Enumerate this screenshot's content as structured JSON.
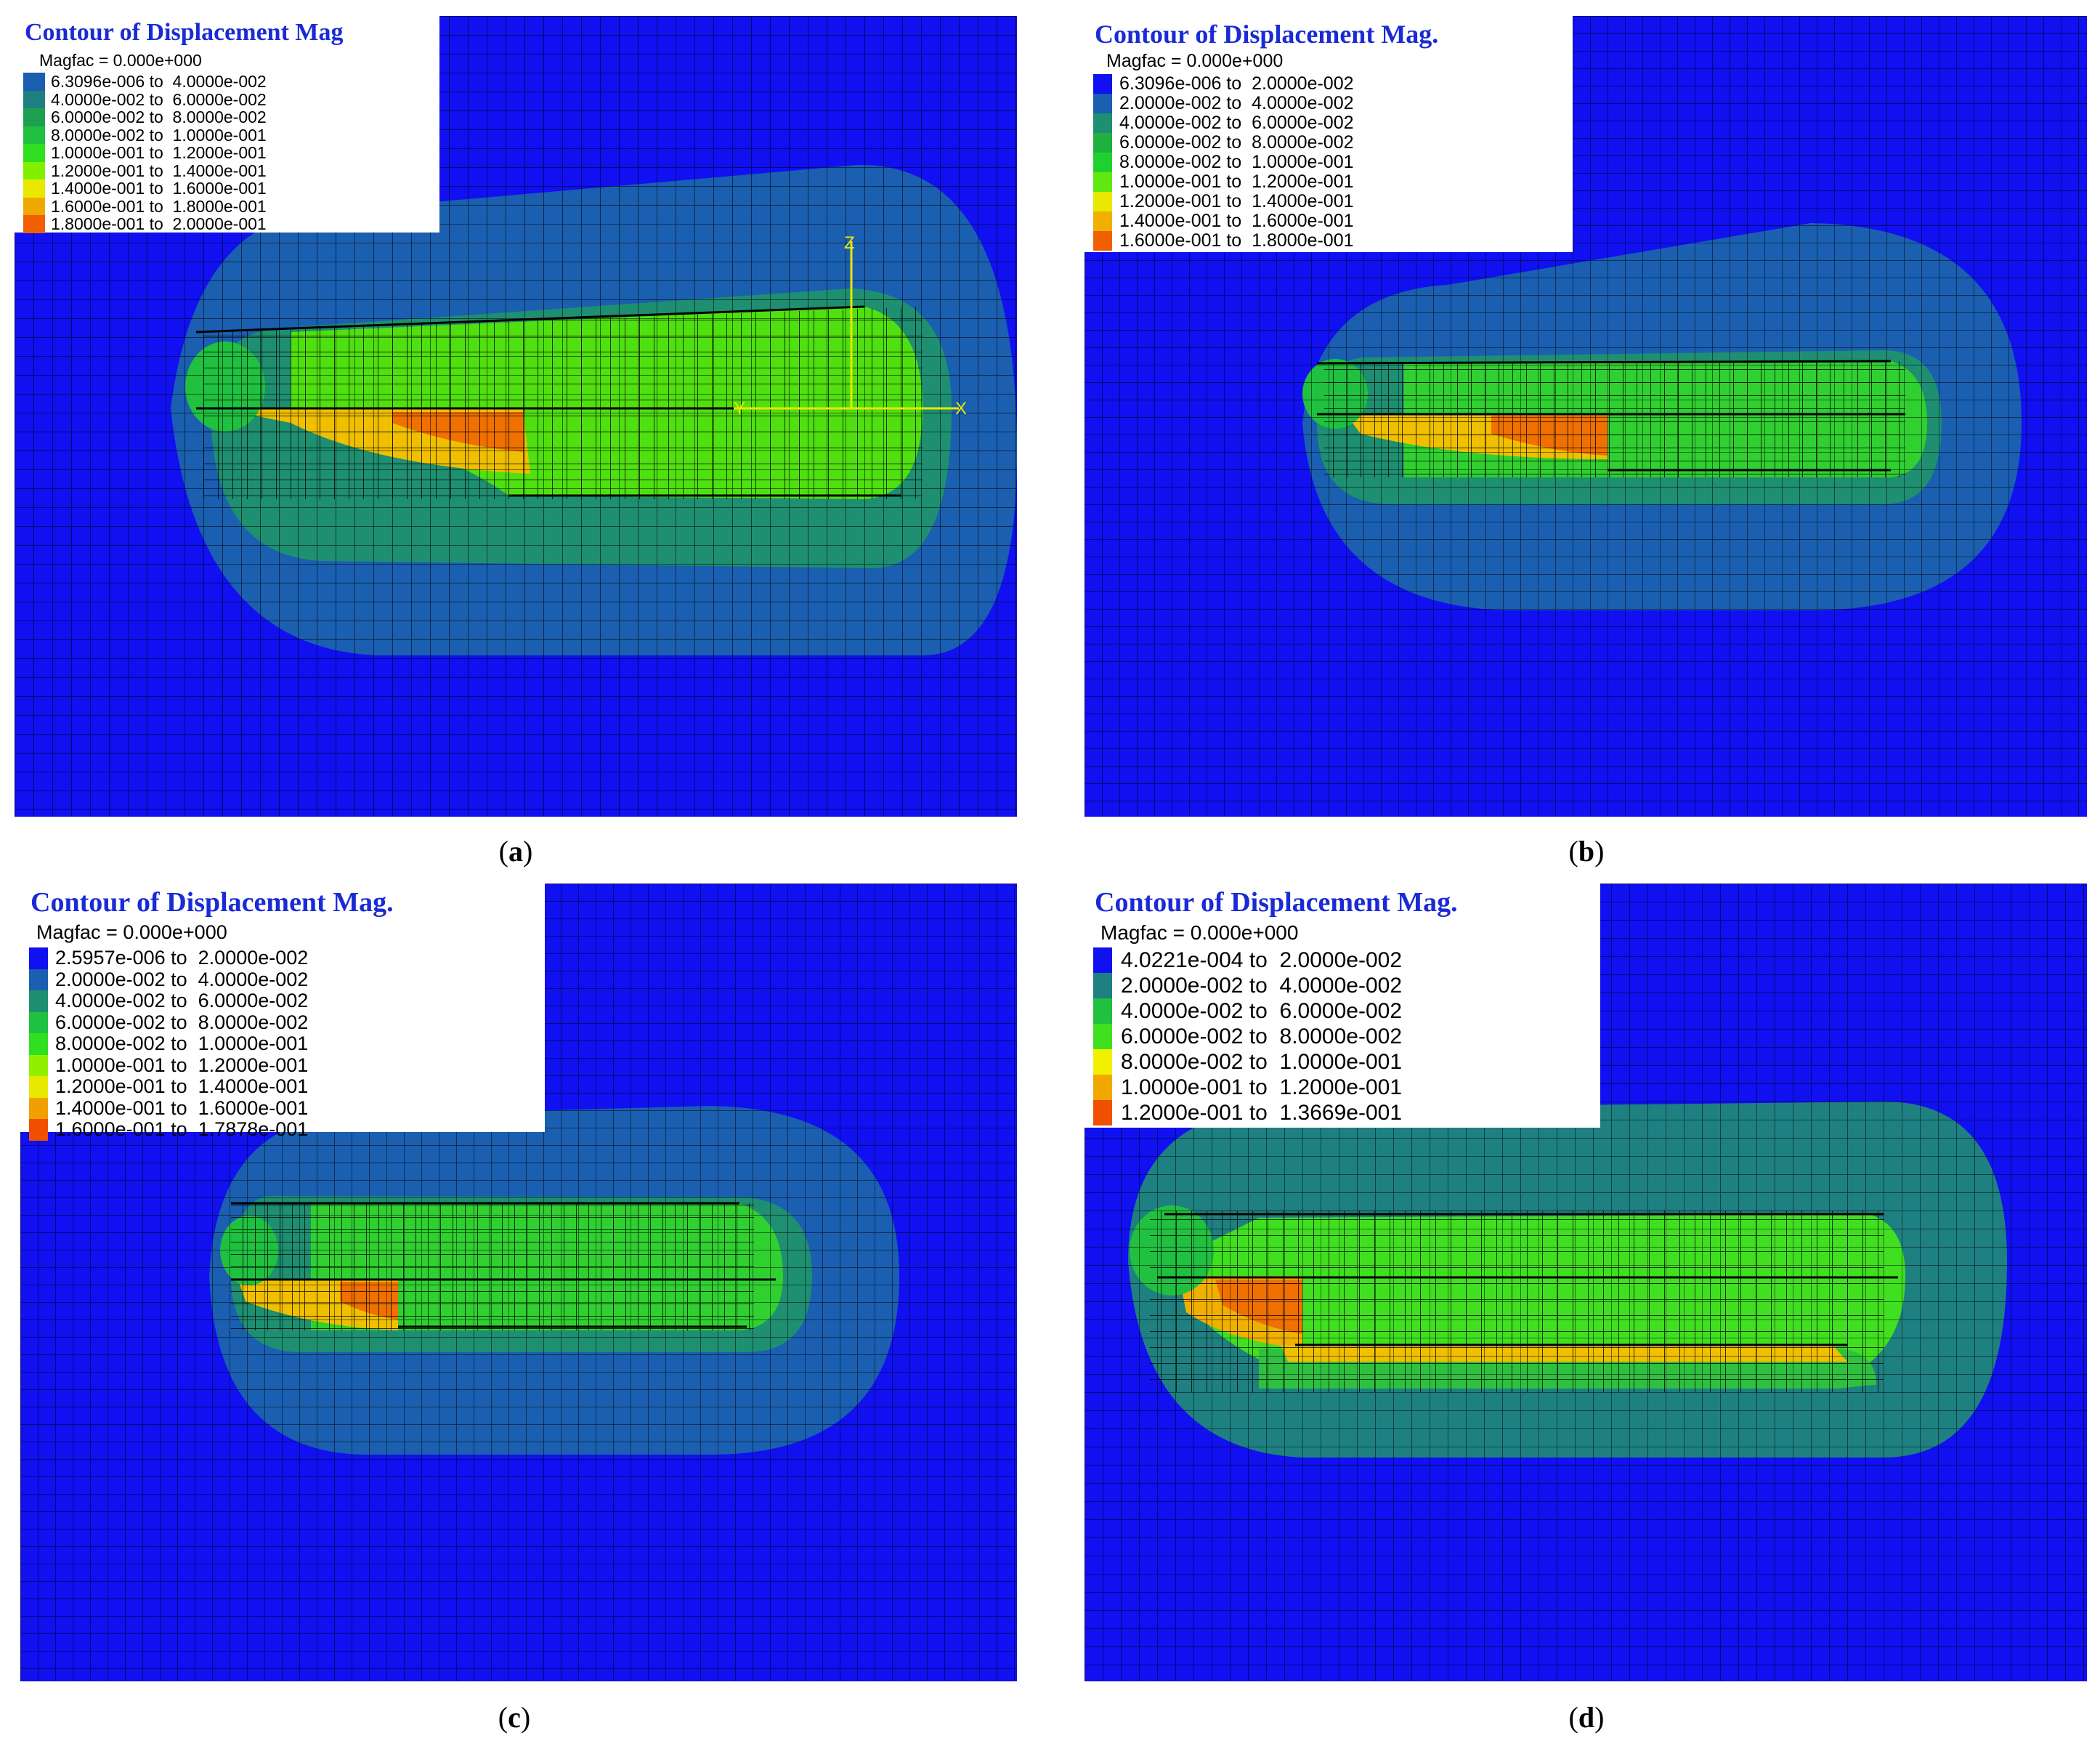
{
  "figure": {
    "background_color": "#1010f0",
    "panels": [
      {
        "id": "a",
        "caption_letter": "a",
        "title": "Contour of Displacement Mag",
        "magfac_label": "Magfac =",
        "magfac_value": "0.000e+000",
        "axis_labels": [
          "Z",
          "Y",
          "X"
        ],
        "legend": [
          {
            "range": "6.3096e-006 to  4.0000e-002",
            "color": "#1a5fb0"
          },
          {
            "range": "4.0000e-002 to  6.0000e-002",
            "color": "#1e7f80"
          },
          {
            "range": "6.0000e-002 to  8.0000e-002",
            "color": "#1fa050"
          },
          {
            "range": "8.0000e-002 to  1.0000e-001",
            "color": "#20c040"
          },
          {
            "range": "1.0000e-001 to  1.2000e-001",
            "color": "#30e020"
          },
          {
            "range": "1.2000e-001 to  1.4000e-001",
            "color": "#80f000"
          },
          {
            "range": "1.4000e-001 to  1.6000e-001",
            "color": "#e8e800"
          },
          {
            "range": "1.6000e-001 to  1.8000e-001",
            "color": "#f0a800"
          },
          {
            "range": "1.8000e-001 to  2.0000e-001",
            "color": "#f06000"
          }
        ]
      },
      {
        "id": "b",
        "caption_letter": "b",
        "title": "Contour of Displacement Mag.",
        "magfac_label": "Magfac =",
        "magfac_value": "0.000e+000",
        "legend": [
          {
            "range": "6.3096e-006 to  2.0000e-002",
            "color": "#1010f0"
          },
          {
            "range": "2.0000e-002 to  4.0000e-002",
            "color": "#1a5fb0"
          },
          {
            "range": "4.0000e-002 to  6.0000e-002",
            "color": "#1e8f70"
          },
          {
            "range": "6.0000e-002 to  8.0000e-002",
            "color": "#20b040"
          },
          {
            "range": "8.0000e-002 to  1.0000e-001",
            "color": "#20d030"
          },
          {
            "range": "1.0000e-001 to  1.2000e-001",
            "color": "#60e810"
          },
          {
            "range": "1.2000e-001 to  1.4000e-001",
            "color": "#e8e800"
          },
          {
            "range": "1.4000e-001 to  1.6000e-001",
            "color": "#f0b000"
          },
          {
            "range": "1.6000e-001 to  1.8000e-001",
            "color": "#f06000"
          }
        ]
      },
      {
        "id": "c",
        "caption_letter": "c",
        "title": "Contour of Displacement Mag.",
        "magfac_label": "Magfac =",
        "magfac_value": "0.000e+000",
        "legend": [
          {
            "range": "2.5957e-006 to  2.0000e-002",
            "color": "#1010f0"
          },
          {
            "range": "2.0000e-002 to  4.0000e-002",
            "color": "#1a5fb0"
          },
          {
            "range": "4.0000e-002 to  6.0000e-002",
            "color": "#1e8f70"
          },
          {
            "range": "6.0000e-002 to  8.0000e-002",
            "color": "#20c040"
          },
          {
            "range": "8.0000e-002 to  1.0000e-001",
            "color": "#30e020"
          },
          {
            "range": "1.0000e-001 to  1.2000e-001",
            "color": "#90f000"
          },
          {
            "range": "1.2000e-001 to  1.4000e-001",
            "color": "#e8e800"
          },
          {
            "range": "1.4000e-001 to  1.6000e-001",
            "color": "#f0a000"
          },
          {
            "range": "1.6000e-001 to  1.7878e-001",
            "color": "#f05000"
          }
        ]
      },
      {
        "id": "d",
        "caption_letter": "d",
        "title": "Contour of Displacement Mag.",
        "magfac_label": "Magfac =",
        "magfac_value": "0.000e+000",
        "legend": [
          {
            "range": "4.0221e-004 to  2.0000e-002",
            "color": "#1010f0"
          },
          {
            "range": "2.0000e-002 to  4.0000e-002",
            "color": "#1e8080"
          },
          {
            "range": "4.0000e-002 to  6.0000e-002",
            "color": "#20c040"
          },
          {
            "range": "6.0000e-002 to  8.0000e-002",
            "color": "#40e020"
          },
          {
            "range": "8.0000e-002 to  1.0000e-001",
            "color": "#f0f000"
          },
          {
            "range": "1.0000e-001 to  1.2000e-001",
            "color": "#f0a800"
          },
          {
            "range": "1.2000e-001 to  1.3669e-001",
            "color": "#f05000"
          }
        ]
      }
    ]
  }
}
